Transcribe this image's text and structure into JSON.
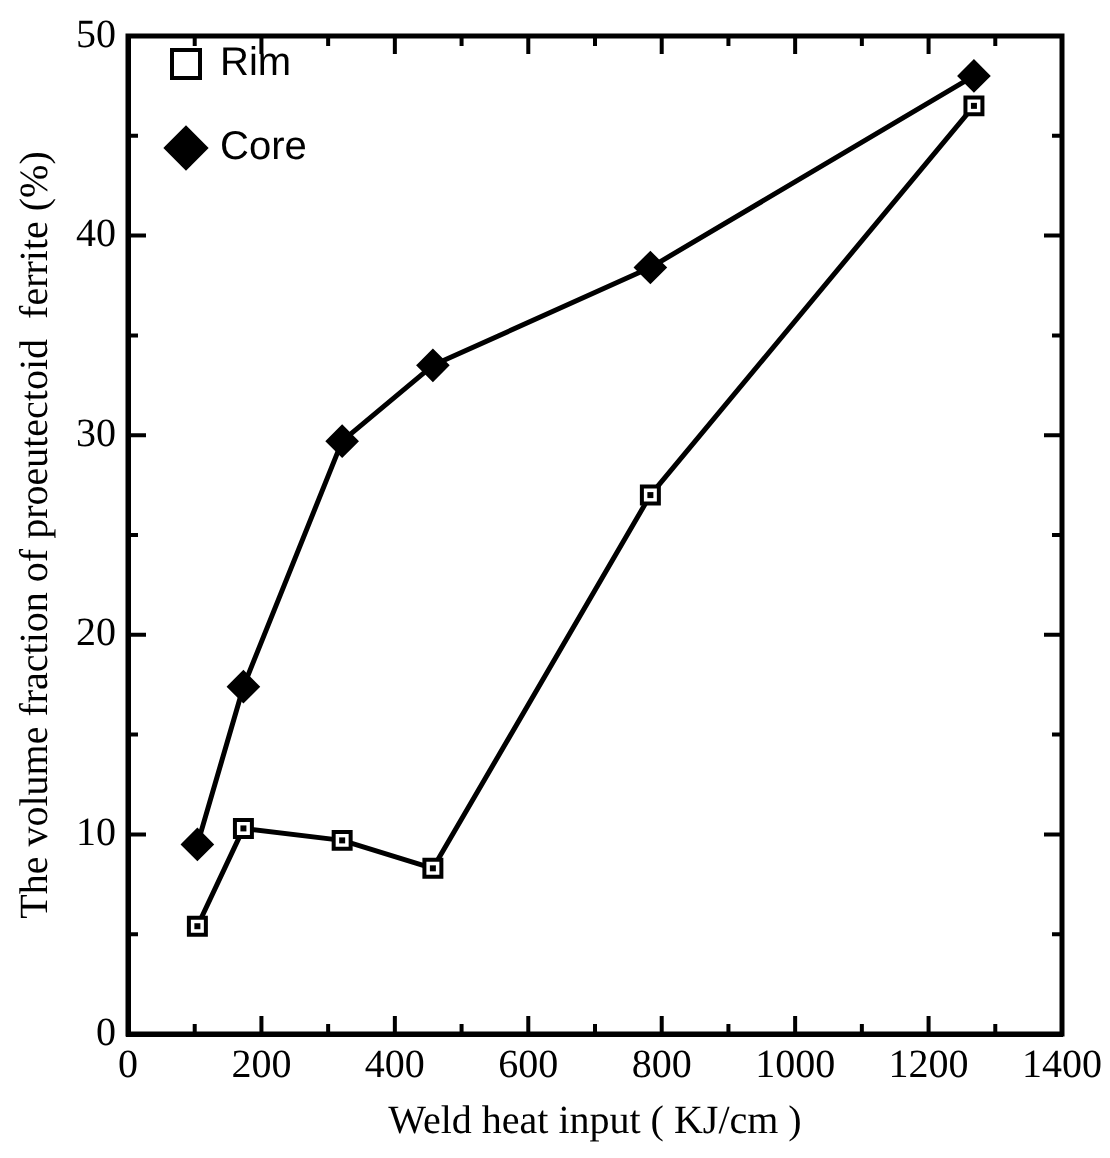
{
  "chart_data": {
    "type": "line",
    "xlabel": "Weld heat input ( KJ/cm )",
    "ylabel": "The volume fraction of proeutectoid  ferrite (%)",
    "xlim": [
      0,
      1400
    ],
    "ylim": [
      0,
      50
    ],
    "xticks": [
      0,
      {
        "value": 100,
        "label": null
      },
      200,
      {
        "value": 300,
        "label": null
      },
      400,
      {
        "value": 500,
        "label": null
      },
      600,
      {
        "value": 700,
        "label": null
      },
      800,
      {
        "value": 900,
        "label": null
      },
      1000,
      {
        "value": 1100,
        "label": null
      },
      1200,
      {
        "value": 1300,
        "label": null
      },
      1400
    ],
    "yticks": [
      0,
      {
        "value": 5,
        "label": null
      },
      10,
      {
        "value": 15,
        "label": null
      },
      20,
      {
        "value": 25,
        "label": null
      },
      30,
      {
        "value": 35,
        "label": null
      },
      40,
      {
        "value": 45,
        "label": null
      },
      50
    ],
    "legend": "top left",
    "grid": false,
    "line_style": "solid",
    "series": [
      {
        "name": "Rim",
        "color": "#000000",
        "marker": "square",
        "x": [
          104,
          173,
          321,
          457,
          783,
          1268
        ],
        "values": [
          5.4,
          10.3,
          9.7,
          8.3,
          27.0,
          46.5
        ]
      },
      {
        "name": "Core",
        "color": "#000000",
        "marker": "diamond",
        "x": [
          104,
          173,
          321,
          457,
          783,
          1268
        ],
        "values": [
          9.5,
          17.4,
          29.7,
          33.5,
          38.4,
          48.0
        ]
      }
    ]
  }
}
